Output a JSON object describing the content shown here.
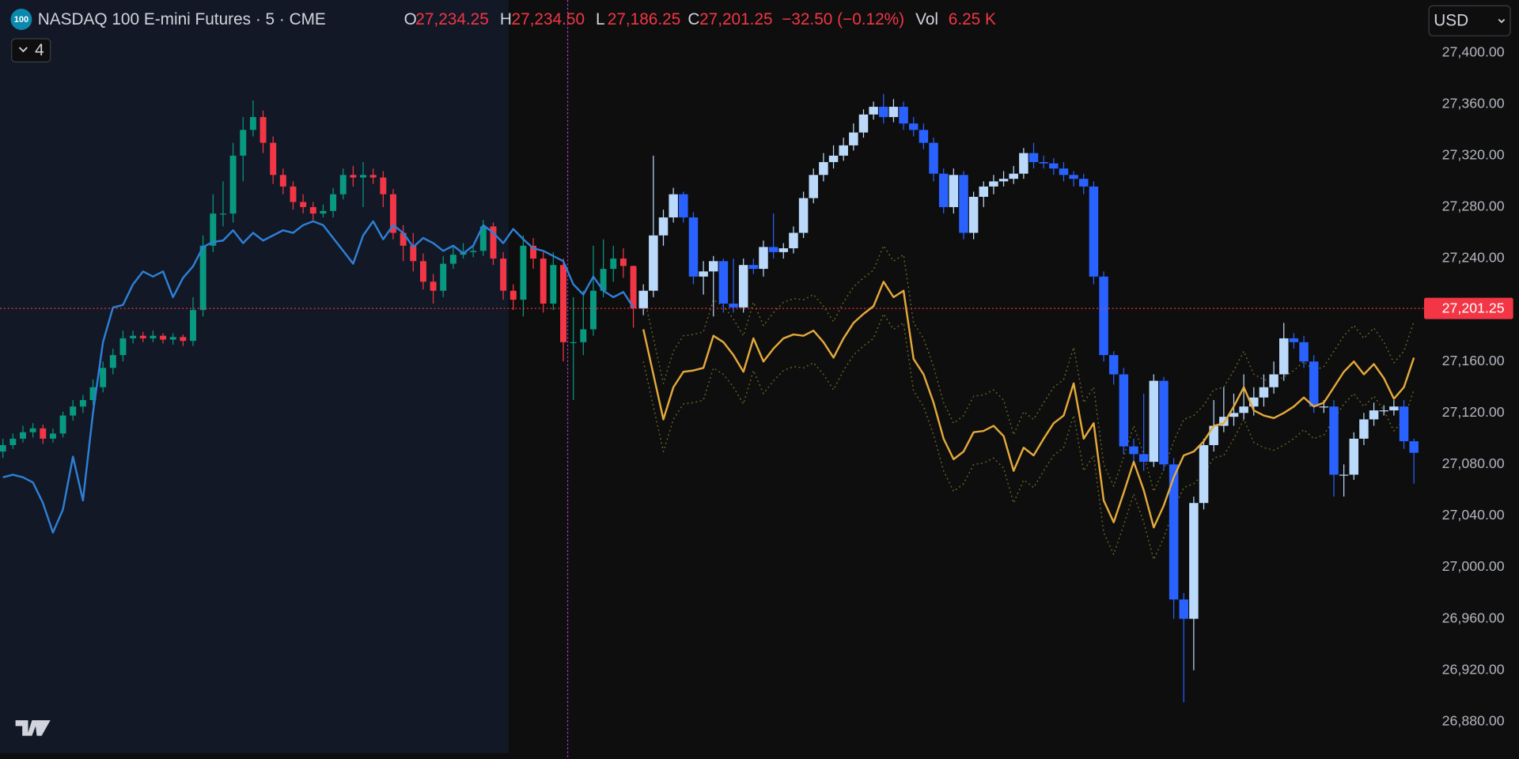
{
  "chart_data": {
    "type": "candlestick",
    "symbol_badge": "100",
    "title": "NASDAQ 100 E-mini Futures · 5 · CME",
    "ohlc_legend": [
      {
        "key": "O",
        "value": "27,234.25"
      },
      {
        "key": "H",
        "value": "27,234.50"
      },
      {
        "key": "L",
        "value": "27,186.25"
      },
      {
        "key": "C",
        "value": "27,201.25"
      }
    ],
    "change": "−32.50 (−0.12%)",
    "volume_key": "Vol",
    "volume": "6.25 K",
    "indicator_count": "4",
    "currency": "USD",
    "grid": false,
    "ylim": [
      26851,
      27441
    ],
    "yticks": [
      {
        "value": 26880,
        "label": "26,880.00"
      },
      {
        "value": 26920,
        "label": "26,920.00"
      },
      {
        "value": 26960,
        "label": "26,960.00"
      },
      {
        "value": 27000,
        "label": "27,000.00"
      },
      {
        "value": 27040,
        "label": "27,040.00"
      },
      {
        "value": 27080,
        "label": "27,080.00"
      },
      {
        "value": 27120,
        "label": "27,120.00"
      },
      {
        "value": 27160,
        "label": "27,160.00"
      },
      {
        "value": 27200,
        "label": "27,200.00"
      },
      {
        "value": 27240,
        "label": "27,240.00"
      },
      {
        "value": 27280,
        "label": "27,280.00"
      },
      {
        "value": 27320,
        "label": "27,320.00"
      },
      {
        "value": 27360,
        "label": "27,360.00"
      },
      {
        "value": 27400,
        "label": "27,400.00"
      }
    ],
    "last_price": {
      "value": 27201.25,
      "label": "27,201.25",
      "color": "#f23645"
    },
    "series": [
      {
        "type": "candlestick",
        "up_color": "#089981",
        "down_color": "#f23645",
        "open": [
          27090,
          27095,
          27100,
          27105,
          27108,
          27100,
          27104,
          27118,
          27125,
          27130,
          27140,
          27155,
          27165,
          27178,
          27180,
          27178,
          27180,
          27177,
          27179,
          27176,
          27200,
          27250,
          27275,
          27275,
          27320,
          27340,
          27350,
          27330,
          27305,
          27296,
          27284,
          27280,
          27275,
          27277,
          27290,
          27305,
          27303,
          27305,
          27303,
          27290,
          27260,
          27250,
          27238,
          27222,
          27215,
          27236,
          27243,
          27245,
          27246,
          27265,
          27240,
          27215,
          27208,
          27250,
          27240,
          27205,
          27235,
          27175,
          27175,
          27185,
          27215,
          27232,
          27240,
          27234.25
        ],
        "high": [
          27100,
          27104,
          27110,
          27112,
          27111,
          27108,
          27121,
          27130,
          27134,
          27146,
          27160,
          27170,
          27184,
          27184,
          27183,
          27184,
          27182,
          27182,
          27181,
          27210,
          27258,
          27290,
          27300,
          27330,
          27350,
          27363,
          27355,
          27335,
          27310,
          27300,
          27290,
          27284,
          27282,
          27295,
          27310,
          27312,
          27315,
          27310,
          27308,
          27294,
          27266,
          27260,
          27244,
          27228,
          27242,
          27250,
          27252,
          27250,
          27270,
          27268,
          27245,
          27220,
          27258,
          27256,
          27245,
          27245,
          27240,
          27210,
          27215,
          27250,
          27255,
          27250,
          27248,
          27234.5
        ],
        "low": [
          27085,
          27092,
          27097,
          27101,
          27096,
          27097,
          27101,
          27114,
          27120,
          27126,
          27136,
          27150,
          27160,
          27174,
          27175,
          27175,
          27174,
          27173,
          27172,
          27172,
          27195,
          27245,
          27265,
          27268,
          27300,
          27335,
          27322,
          27298,
          27290,
          27278,
          27275,
          27270,
          27272,
          27272,
          27286,
          27296,
          27280,
          27298,
          27280,
          27255,
          27238,
          27230,
          27216,
          27205,
          27210,
          27232,
          27240,
          27241,
          27242,
          27235,
          27208,
          27200,
          27195,
          27232,
          27198,
          27200,
          27160,
          27130,
          27165,
          27180,
          27210,
          27222,
          27225,
          27186.25
        ],
        "close": [
          27095,
          27100,
          27105,
          27108,
          27100,
          27104,
          27118,
          27125,
          27130,
          27140,
          27155,
          27165,
          27178,
          27180,
          27178,
          27180,
          27177,
          27179,
          27176,
          27200,
          27250,
          27275,
          27275,
          27320,
          27340,
          27350,
          27330,
          27305,
          27296,
          27284,
          27280,
          27275,
          27277,
          27290,
          27305,
          27303,
          27305,
          27303,
          27290,
          27260,
          27250,
          27238,
          27222,
          27215,
          27236,
          27243,
          27245,
          27246,
          27265,
          27240,
          27215,
          27208,
          27250,
          27240,
          27205,
          27235,
          27175,
          27175,
          27185,
          27215,
          27232,
          27240,
          27234.25,
          27201.25
        ]
      },
      {
        "type": "candlestick",
        "up_color": "#bbd9fb",
        "down_color": "#2962ff",
        "open": [
          27201.25,
          27215,
          27258,
          27272,
          27290,
          27272,
          27226,
          27230,
          27238,
          27205,
          27202,
          27235,
          27232,
          27249,
          27245,
          27248,
          27260,
          27287,
          27305,
          27315,
          27320,
          27328,
          27338,
          27352,
          27358,
          27350,
          27358,
          27345,
          27340,
          27330,
          27306,
          27280,
          27305,
          27260,
          27288,
          27296,
          27300,
          27302,
          27306,
          27322,
          27315,
          27314,
          27310,
          27305,
          27302,
          27296,
          27226,
          27165,
          27150,
          27094,
          27088,
          27082,
          27145,
          27080,
          26975,
          26960,
          27050,
          27095,
          27110,
          27117,
          27120,
          27125,
          27132,
          27140,
          27150,
          27178,
          27175,
          27160,
          27125,
          27125,
          27072,
          27072,
          27100,
          27115,
          27122,
          27122,
          27125,
          27098
        ],
        "high": [
          27220,
          27320,
          27278,
          27295,
          27292,
          27276,
          27238,
          27242,
          27240,
          27240,
          27240,
          27240,
          27254,
          27275,
          27252,
          27265,
          27292,
          27310,
          27322,
          27328,
          27334,
          27345,
          27356,
          27362,
          27368,
          27364,
          27362,
          27350,
          27345,
          27334,
          27310,
          27310,
          27308,
          27292,
          27300,
          27305,
          27308,
          27312,
          27326,
          27330,
          27320,
          27318,
          27315,
          27308,
          27306,
          27300,
          27230,
          27168,
          27155,
          27100,
          27135,
          27150,
          27148,
          27085,
          26980,
          27055,
          27100,
          27130,
          27140,
          27135,
          27150,
          27140,
          27150,
          27160,
          27190,
          27182,
          27180,
          27165,
          27130,
          27130,
          27080,
          27105,
          27120,
          27128,
          27126,
          27130,
          27130,
          27100
        ],
        "low": [
          27196,
          27210,
          27250,
          27268,
          27268,
          27220,
          27212,
          27195,
          27198,
          27198,
          27198,
          27228,
          27226,
          27240,
          27240,
          27244,
          27256,
          27283,
          27300,
          27310,
          27316,
          27324,
          27334,
          27348,
          27345,
          27346,
          27340,
          27335,
          27325,
          27300,
          27275,
          27275,
          27255,
          27255,
          27280,
          27290,
          27296,
          27298,
          27302,
          27310,
          27310,
          27305,
          27300,
          27296,
          27290,
          27220,
          27160,
          27142,
          27088,
          27082,
          27075,
          27078,
          27075,
          26960,
          26895,
          26920,
          27045,
          27090,
          27105,
          27110,
          27115,
          27118,
          27125,
          27135,
          27145,
          27170,
          27155,
          27120,
          27120,
          27055,
          27055,
          27068,
          27095,
          27110,
          27118,
          27118,
          27092,
          27065
        ],
        "close": [
          27215,
          27258,
          27272,
          27290,
          27272,
          27226,
          27230,
          27238,
          27205,
          27202,
          27235,
          27232,
          27249,
          27245,
          27248,
          27260,
          27287,
          27305,
          27315,
          27320,
          27328,
          27338,
          27352,
          27358,
          27350,
          27358,
          27345,
          27340,
          27330,
          27306,
          27280,
          27305,
          27260,
          27288,
          27296,
          27300,
          27302,
          27306,
          27322,
          27315,
          27314,
          27310,
          27305,
          27302,
          27296,
          27226,
          27165,
          27150,
          27094,
          27088,
          27082,
          27145,
          27080,
          26975,
          26960,
          27050,
          27095,
          27110,
          27117,
          27120,
          27125,
          27132,
          27140,
          27150,
          27178,
          27175,
          27160,
          27125,
          27125,
          27072,
          27072,
          27100,
          27115,
          27122,
          27122,
          27125,
          27098,
          27089
        ]
      },
      {
        "type": "line",
        "color": "#2e7fd6",
        "values": [
          27070,
          27072,
          27070,
          27066,
          27050,
          27027,
          27045,
          27086,
          27052,
          27120,
          27175,
          27202,
          27204,
          27220,
          27230,
          27226,
          27230,
          27210,
          27225,
          27234,
          27249,
          27253,
          27254,
          27262,
          27252,
          27260,
          27254,
          27258,
          27262,
          27260,
          27266,
          27269,
          27266,
          27256,
          27246,
          27236,
          27258,
          27269,
          27255,
          27266,
          27260,
          27249,
          27256,
          27252,
          27246,
          27250,
          27244,
          27250,
          27266,
          27260,
          27252,
          27263,
          27255,
          27248,
          27246,
          27242,
          27238,
          27220,
          27212,
          27226,
          27215,
          27210,
          27214,
          27202
        ]
      },
      {
        "type": "line",
        "color": "#e3a93b",
        "values": [
          27185,
          27150,
          27115,
          27140,
          27152,
          27153,
          27155,
          27180,
          27175,
          27165,
          27152,
          27178,
          27160,
          27170,
          27178,
          27181,
          27180,
          27184,
          27175,
          27163,
          27178,
          27190,
          27197,
          27203,
          27222,
          27210,
          27215,
          27162,
          27150,
          27128,
          27100,
          27084,
          27090,
          27105,
          27106,
          27110,
          27102,
          27075,
          27093,
          27087,
          27100,
          27112,
          27118,
          27143,
          27100,
          27112,
          27052,
          27035,
          27058,
          27082,
          27060,
          27031,
          27048,
          27070,
          27087,
          27090,
          27098,
          27110,
          27112,
          27125,
          27140,
          27122,
          27118,
          27116,
          27120,
          27125,
          27132,
          27125,
          27128,
          27140,
          27152,
          27160,
          27150,
          27158,
          27147,
          27131,
          27140,
          27163
        ]
      },
      {
        "type": "line",
        "color": "#6a6628",
        "dotted": true,
        "values": [
          27213,
          27178,
          27143,
          27168,
          27180,
          27181,
          27183,
          27208,
          27203,
          27193,
          27180,
          27206,
          27188,
          27198,
          27206,
          27209,
          27208,
          27212,
          27203,
          27191,
          27206,
          27218,
          27225,
          27231,
          27250,
          27238,
          27243,
          27190,
          27178,
          27156,
          27128,
          27112,
          27118,
          27133,
          27134,
          27138,
          27130,
          27103,
          27121,
          27115,
          27128,
          27140,
          27146,
          27171,
          27128,
          27140,
          27080,
          27063,
          27086,
          27110,
          27088,
          27059,
          27076,
          27098,
          27115,
          27118,
          27126,
          27138,
          27140,
          27153,
          27168,
          27150,
          27146,
          27144,
          27148,
          27153,
          27160,
          27153,
          27156,
          27168,
          27180,
          27188,
          27178,
          27186,
          27175,
          27159,
          27168,
          27191
        ]
      },
      {
        "type": "line",
        "color": "#6a6628",
        "dotted": true,
        "values": [
          27160,
          27125,
          27090,
          27115,
          27127,
          27128,
          27130,
          27155,
          27150,
          27140,
          27127,
          27153,
          27135,
          27145,
          27153,
          27156,
          27155,
          27159,
          27150,
          27138,
          27153,
          27165,
          27172,
          27178,
          27197,
          27185,
          27190,
          27137,
          27125,
          27103,
          27075,
          27059,
          27065,
          27080,
          27081,
          27085,
          27077,
          27050,
          27068,
          27062,
          27075,
          27087,
          27093,
          27118,
          27075,
          27087,
          27027,
          27010,
          27033,
          27057,
          27035,
          27006,
          27023,
          27045,
          27062,
          27065,
          27073,
          27085,
          27087,
          27100,
          27115,
          27097,
          27093,
          27091,
          27095,
          27100,
          27107,
          27100,
          27103,
          27115,
          27127,
          27135,
          27125,
          27133,
          27122,
          27106,
          27115,
          27138
        ]
      }
    ]
  }
}
